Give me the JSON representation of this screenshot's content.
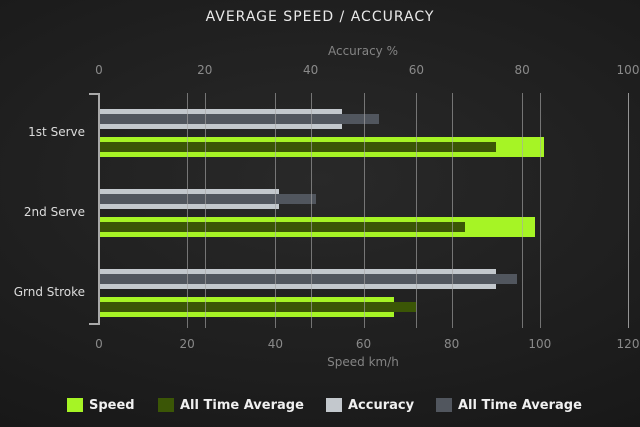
{
  "title": "AVERAGE SPEED / ACCURACY",
  "chart_data": {
    "type": "bar",
    "orientation": "horizontal",
    "categories": [
      "1st Serve",
      "2nd Serve",
      "Grnd Stroke"
    ],
    "axes": {
      "top": {
        "label": "Accuracy %",
        "range": [
          0,
          100
        ],
        "ticks": [
          0,
          20,
          40,
          60,
          80,
          100
        ]
      },
      "bottom": {
        "label": "Speed km/h",
        "range": [
          0,
          120
        ],
        "ticks": [
          0,
          20,
          40,
          60,
          80,
          100,
          120
        ]
      }
    },
    "grid": "vertical-both-axes",
    "legend_position": "bottom",
    "series": [
      {
        "name": "Speed",
        "axis": "bottom",
        "role": "base",
        "color": "#a6f425",
        "values": [
          101,
          99,
          67
        ]
      },
      {
        "name": "All Time Average",
        "axis": "bottom",
        "role": "overlay",
        "color": "#3b5606",
        "values": [
          90,
          83,
          72
        ]
      },
      {
        "name": "Accuracy",
        "axis": "top",
        "role": "base",
        "color": "#c3c8cd",
        "values": [
          46,
          34,
          75
        ]
      },
      {
        "name": "All Time Average",
        "axis": "top",
        "role": "overlay",
        "color": "#51565e",
        "values": [
          53,
          41,
          79
        ]
      }
    ]
  }
}
